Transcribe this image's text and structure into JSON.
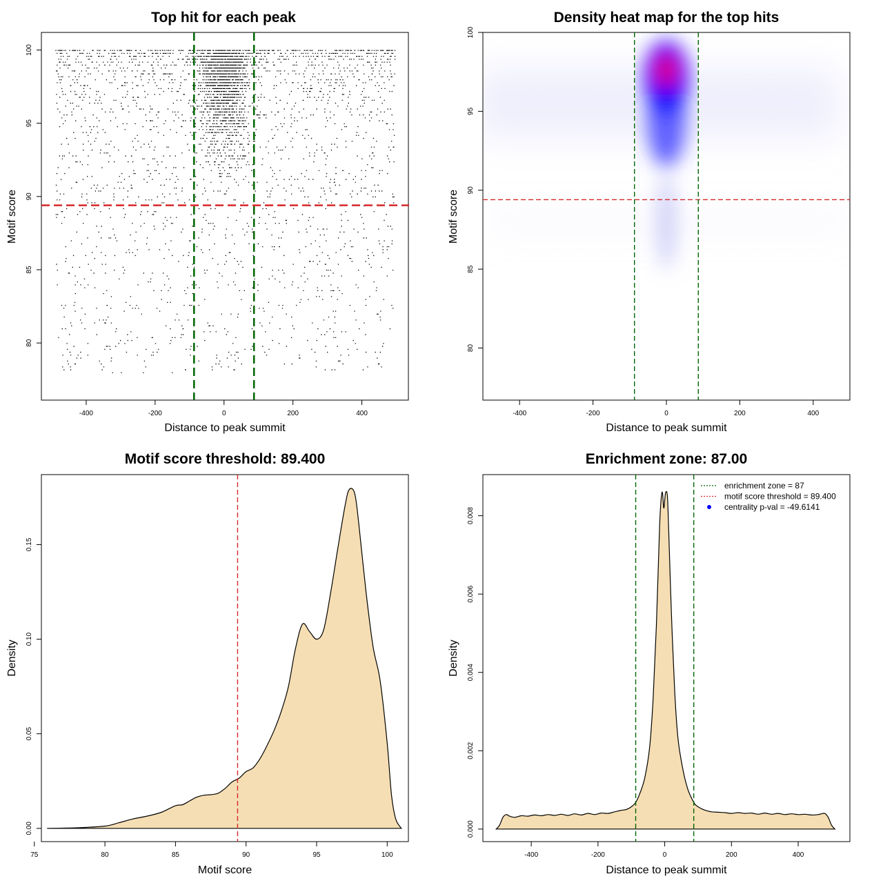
{
  "colors": {
    "threshold_line": "#d62728",
    "zone_line": "#006400",
    "density_fill": "#f5deb3",
    "points": "#000000",
    "heat_low": "#ffffff",
    "heat_mid": "#0000ff",
    "heat_high": "#ff0000",
    "centrality_marker": "#0000ff"
  },
  "chart_data": [
    {
      "id": "scatter",
      "type": "scatter",
      "title": "Top hit for each peak",
      "xlabel": "Distance to peak summit",
      "ylabel": "Motif score",
      "xlim": [
        -530,
        535
      ],
      "ylim": [
        76.1,
        101.2
      ],
      "xticks": [
        -400,
        -200,
        0,
        200,
        400
      ],
      "yticks": [
        80,
        85,
        90,
        95,
        100
      ],
      "xtick_labels": [
        "-400",
        "-200",
        "0",
        "200",
        "400"
      ],
      "ytick_labels": [
        "80",
        "85",
        "90",
        "95",
        "100"
      ],
      "hline": 89.4,
      "vlines": [
        -87,
        87
      ],
      "x_range_of_points": [
        -490,
        495
      ],
      "y_range_of_points": [
        76.7,
        100
      ],
      "approx_n_points": 9000
    },
    {
      "id": "heatmap",
      "type": "heatmap",
      "title": "Density heat map for the top hits",
      "xlabel": "Distance to peak summit",
      "ylabel": "Motif score",
      "xlim": [
        -500,
        500
      ],
      "ylim": [
        76.7,
        100
      ],
      "xticks": [
        -400,
        -200,
        0,
        200,
        400
      ],
      "yticks": [
        80,
        85,
        90,
        95,
        100
      ],
      "xtick_labels": [
        "-400",
        "-200",
        "0",
        "200",
        "400"
      ],
      "ytick_labels": [
        "80",
        "85",
        "90",
        "95",
        "100"
      ],
      "hline": 89.4,
      "vlines": [
        -87,
        87
      ],
      "peak": {
        "x": 0,
        "y": 97.6
      }
    },
    {
      "id": "score_density",
      "type": "area",
      "title": "Motif score threshold: 89.400",
      "xlabel": "Motif score",
      "ylabel": "Density",
      "xlim": [
        75.5,
        101.5
      ],
      "ylim": [
        -0.007,
        0.187
      ],
      "xticks": [
        75,
        80,
        85,
        90,
        95,
        100
      ],
      "yticks": [
        0.0,
        0.05,
        0.1,
        0.15
      ],
      "xtick_labels": [
        "75",
        "80",
        "85",
        "90",
        "95",
        "100"
      ],
      "ytick_labels": [
        "0.00",
        "0.05",
        "0.10",
        "0.15"
      ],
      "vline": 89.4,
      "x": [
        75.9,
        78,
        80,
        81,
        82,
        83,
        84,
        85,
        85.5,
        86,
        86.5,
        87,
        87.5,
        88,
        88.5,
        89,
        89.5,
        90,
        90.5,
        91,
        91.5,
        92,
        92.5,
        93,
        93.5,
        94,
        94.5,
        95,
        95.5,
        96,
        96.5,
        97,
        97.3,
        97.7,
        98,
        98.5,
        99,
        99.5,
        100,
        100.3,
        100.6,
        101
      ],
      "y": [
        0.0,
        0.0003,
        0.0012,
        0.003,
        0.005,
        0.0065,
        0.0085,
        0.012,
        0.0125,
        0.0145,
        0.0165,
        0.0175,
        0.0178,
        0.0185,
        0.021,
        0.0245,
        0.0265,
        0.03,
        0.032,
        0.037,
        0.044,
        0.052,
        0.062,
        0.075,
        0.095,
        0.108,
        0.104,
        0.1,
        0.105,
        0.125,
        0.148,
        0.17,
        0.179,
        0.177,
        0.16,
        0.125,
        0.096,
        0.078,
        0.045,
        0.018,
        0.005,
        0.0
      ]
    },
    {
      "id": "distance_density",
      "type": "area",
      "title": "Enrichment zone: 87.00",
      "xlabel": "Distance to peak summit",
      "ylabel": "Density",
      "xlim": [
        -545,
        555
      ],
      "ylim": [
        -0.00032,
        0.00905
      ],
      "xticks": [
        -400,
        -200,
        0,
        200,
        400
      ],
      "yticks": [
        0.0,
        0.002,
        0.004,
        0.006,
        0.008
      ],
      "xtick_labels": [
        "-400",
        "-200",
        "0",
        "200",
        "400"
      ],
      "ytick_labels": [
        "0.000",
        "0.002",
        "0.004",
        "0.006",
        "0.008"
      ],
      "vlines": [
        -87,
        87
      ],
      "legend": [
        {
          "label": "enrichment zone = 87",
          "style": "dotted",
          "color": "#006400"
        },
        {
          "label": "motif score threshold = 89.400",
          "style": "dotted",
          "color": "#d62728"
        },
        {
          "label": "centrality p-val = -49.6141",
          "style": "point",
          "color": "#0000ff"
        }
      ],
      "legend_position": "top-right",
      "x": [
        -505,
        -495,
        -485,
        -475,
        -465,
        -450,
        -430,
        -410,
        -390,
        -370,
        -350,
        -330,
        -310,
        -290,
        -270,
        -250,
        -230,
        -210,
        -190,
        -170,
        -150,
        -130,
        -115,
        -100,
        -87,
        -75,
        -60,
        -45,
        -35,
        -25,
        -15,
        -8,
        -3,
        0,
        3,
        8,
        12,
        20,
        30,
        40,
        55,
        70,
        87,
        95,
        100,
        110,
        125,
        140,
        160,
        180,
        200,
        220,
        240,
        260,
        280,
        300,
        320,
        340,
        360,
        380,
        400,
        420,
        440,
        460,
        470,
        480,
        490,
        500,
        510
      ],
      "y": [
        0.0,
        0.0001,
        0.0003,
        0.00037,
        0.00033,
        0.0003,
        0.00034,
        0.00033,
        0.00036,
        0.00034,
        0.00037,
        0.00035,
        0.00038,
        0.00035,
        0.00039,
        0.00036,
        0.0004,
        0.00037,
        0.00041,
        0.0004,
        0.00044,
        0.00048,
        0.0005,
        0.00057,
        0.00068,
        0.0009,
        0.0013,
        0.0021,
        0.0033,
        0.0052,
        0.0078,
        0.0086,
        0.0082,
        0.0084,
        0.0086,
        0.0085,
        0.0076,
        0.0055,
        0.0035,
        0.0023,
        0.0015,
        0.001,
        0.00068,
        0.0006,
        0.00057,
        0.00052,
        0.00047,
        0.00044,
        0.00043,
        0.00042,
        0.0004,
        0.00042,
        0.0004,
        0.00041,
        0.00038,
        0.00041,
        0.00038,
        0.0004,
        0.00037,
        0.00039,
        0.00037,
        0.00038,
        0.00036,
        0.00037,
        0.00039,
        0.0004,
        0.0003,
        0.0001,
        0.0
      ]
    }
  ]
}
